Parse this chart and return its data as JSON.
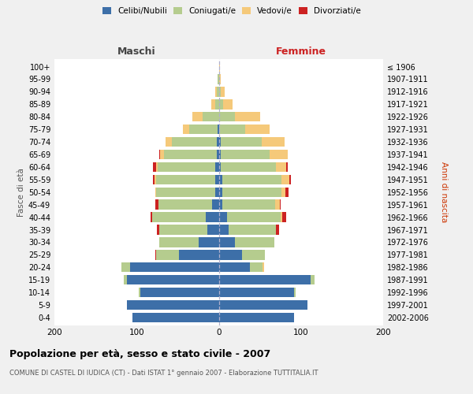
{
  "age_groups": [
    "0-4",
    "5-9",
    "10-14",
    "15-19",
    "20-24",
    "25-29",
    "30-34",
    "35-39",
    "40-44",
    "45-49",
    "50-54",
    "55-59",
    "60-64",
    "65-69",
    "70-74",
    "75-79",
    "80-84",
    "85-89",
    "90-94",
    "95-99",
    "100+"
  ],
  "birth_years": [
    "2002-2006",
    "1997-2001",
    "1992-1996",
    "1987-1991",
    "1982-1986",
    "1977-1981",
    "1972-1976",
    "1967-1971",
    "1962-1966",
    "1957-1961",
    "1952-1956",
    "1947-1951",
    "1942-1946",
    "1937-1941",
    "1932-1936",
    "1927-1931",
    "1922-1926",
    "1917-1921",
    "1912-1916",
    "1907-1911",
    "≤ 1906"
  ],
  "maschi": {
    "celibi": [
      105,
      112,
      95,
      112,
      108,
      48,
      24,
      14,
      16,
      8,
      4,
      4,
      4,
      2,
      2,
      1,
      0,
      0,
      0,
      0,
      0
    ],
    "coniugati": [
      0,
      0,
      2,
      4,
      10,
      28,
      48,
      58,
      65,
      65,
      72,
      72,
      70,
      65,
      55,
      35,
      20,
      4,
      2,
      1,
      0
    ],
    "vedovi": [
      0,
      0,
      0,
      0,
      0,
      0,
      0,
      0,
      0,
      0,
      1,
      2,
      2,
      4,
      8,
      8,
      12,
      5,
      2,
      0,
      0
    ],
    "divorziati": [
      0,
      0,
      0,
      0,
      0,
      1,
      0,
      3,
      2,
      4,
      0,
      2,
      4,
      1,
      0,
      0,
      0,
      0,
      0,
      0,
      0
    ]
  },
  "femmine": {
    "nubili": [
      92,
      108,
      92,
      112,
      38,
      28,
      20,
      12,
      10,
      4,
      4,
      4,
      2,
      2,
      2,
      0,
      0,
      0,
      0,
      0,
      0
    ],
    "coniugate": [
      0,
      0,
      2,
      5,
      15,
      28,
      48,
      58,
      65,
      65,
      72,
      72,
      68,
      60,
      50,
      32,
      20,
      5,
      2,
      0,
      0
    ],
    "vedove": [
      0,
      0,
      0,
      0,
      2,
      0,
      0,
      0,
      2,
      5,
      5,
      10,
      12,
      22,
      28,
      30,
      30,
      12,
      5,
      2,
      1
    ],
    "divorziate": [
      0,
      0,
      0,
      0,
      0,
      0,
      0,
      3,
      5,
      1,
      4,
      2,
      2,
      0,
      0,
      0,
      0,
      0,
      0,
      0,
      0
    ]
  },
  "colors": {
    "celibi_nubili": "#3d6fa8",
    "coniugati": "#b5cc8e",
    "vedovi": "#f5c97a",
    "divorziati": "#cc2222"
  },
  "xlim": 200,
  "title": "Popolazione per età, sesso e stato civile - 2007",
  "subtitle": "COMUNE DI CASTEL DI IUDICA (CT) - Dati ISTAT 1° gennaio 2007 - Elaborazione TUTTITALIA.IT",
  "ylabel_left": "Fasce di età",
  "ylabel_right": "Anni di nascita",
  "xlabel_left": "Maschi",
  "xlabel_right": "Femmine",
  "legend_labels": [
    "Celibi/Nubili",
    "Coniugati/e",
    "Vedovi/e",
    "Divorziati/e"
  ],
  "bg_color": "#f0f0f0",
  "bar_bg_color": "#ffffff"
}
